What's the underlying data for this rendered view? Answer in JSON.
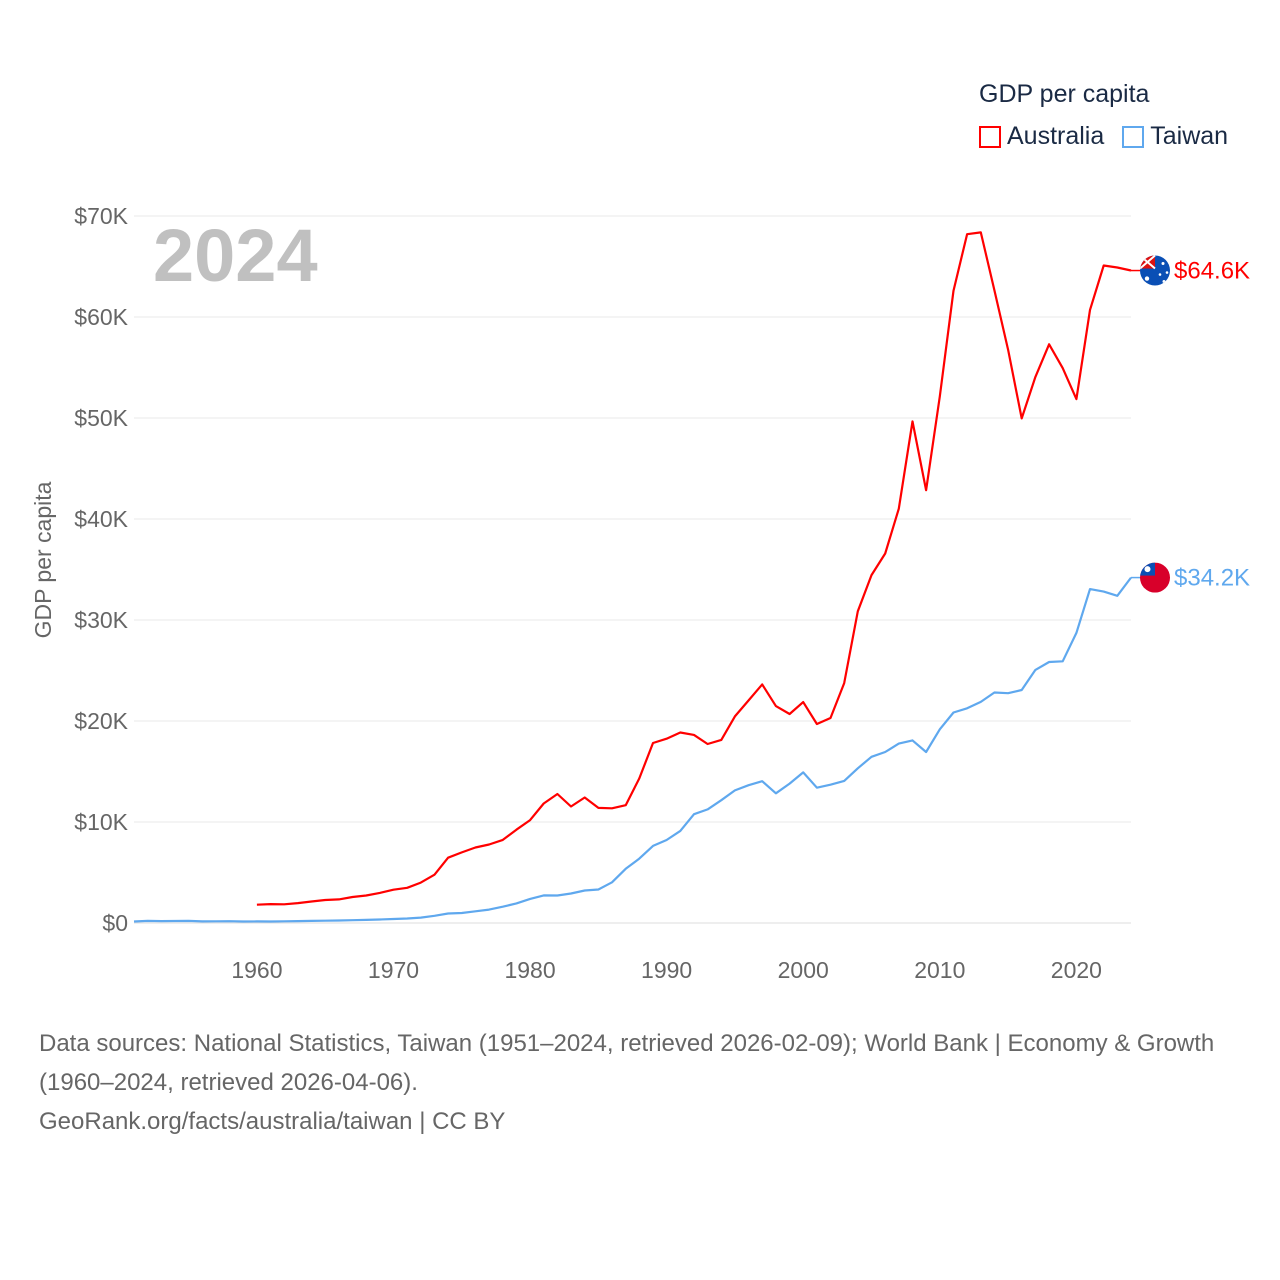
{
  "legend": {
    "title": "GDP per capita",
    "items": [
      {
        "label": "Australia",
        "color": "#ff0000"
      },
      {
        "label": "Taiwan",
        "color": "#5fa8ee"
      }
    ]
  },
  "year_label": "2024",
  "footer": {
    "sources": "Data sources: National Statistics, Taiwan (1951–2024, retrieved 2026-02-09); World Bank | Economy & Growth (1960–2024, retrieved 2026-04-06).",
    "credit": "GeoRank.org/facts/australia/taiwan | CC BY"
  },
  "chart_data": {
    "type": "line",
    "ylabel": "GDP per capita",
    "xlabel": "",
    "xlim": [
      1951,
      2024
    ],
    "ylim": [
      0,
      70000
    ],
    "grid": true,
    "x_ticks": [
      1960,
      1970,
      1980,
      1990,
      2000,
      2010,
      2020
    ],
    "y_ticks": [
      {
        "value": 0,
        "label": "$0"
      },
      {
        "value": 10000,
        "label": "$10K"
      },
      {
        "value": 20000,
        "label": "$20K"
      },
      {
        "value": 30000,
        "label": "$30K"
      },
      {
        "value": 40000,
        "label": "$40K"
      },
      {
        "value": 50000,
        "label": "$50K"
      },
      {
        "value": 60000,
        "label": "$60K"
      },
      {
        "value": 70000,
        "label": "$70K"
      }
    ],
    "series": [
      {
        "name": "Australia",
        "color": "#ff0000",
        "end_label": "$64.6K",
        "flag": "australia-flag-icon",
        "start_year": 1960,
        "values_k": [
          1.81,
          1.87,
          1.85,
          1.97,
          2.13,
          2.28,
          2.34,
          2.57,
          2.72,
          2.98,
          3.3,
          3.49,
          4.0,
          4.78,
          6.47,
          6.99,
          7.48,
          7.77,
          8.23,
          9.24,
          10.19,
          11.83,
          12.77,
          11.53,
          12.43,
          11.4,
          11.36,
          11.66,
          14.32,
          17.82,
          18.25,
          18.86,
          18.62,
          17.72,
          18.13,
          20.46,
          22.04,
          23.62,
          21.48,
          20.69,
          21.87,
          19.7,
          20.3,
          23.75,
          30.86,
          34.45,
          36.58,
          41.02,
          49.66,
          42.85,
          52.13,
          62.6,
          68.2,
          68.38,
          62.65,
          56.76,
          49.96,
          54.07,
          57.3,
          54.94,
          51.87,
          60.7,
          65.1,
          64.9,
          64.6
        ]
      },
      {
        "name": "Taiwan",
        "color": "#5fa8ee",
        "end_label": "$34.2K",
        "flag": "taiwan-flag-icon",
        "start_year": 1951,
        "values_k": [
          0.15,
          0.21,
          0.19,
          0.2,
          0.21,
          0.16,
          0.17,
          0.18,
          0.15,
          0.16,
          0.15,
          0.17,
          0.19,
          0.21,
          0.23,
          0.25,
          0.28,
          0.31,
          0.35,
          0.4,
          0.45,
          0.53,
          0.71,
          0.94,
          0.99,
          1.16,
          1.33,
          1.61,
          1.94,
          2.39,
          2.73,
          2.72,
          2.92,
          3.22,
          3.32,
          4.03,
          5.37,
          6.38,
          7.63,
          8.22,
          9.12,
          10.77,
          11.25,
          12.16,
          13.13,
          13.64,
          14.04,
          12.84,
          13.8,
          14.91,
          13.4,
          13.69,
          14.07,
          15.32,
          16.46,
          16.93,
          17.76,
          18.08,
          16.93,
          19.18,
          20.84,
          21.26,
          21.89,
          22.82,
          22.75,
          23.07,
          25.06,
          25.84,
          25.91,
          28.72,
          33.06,
          32.81,
          32.4,
          34.2
        ]
      }
    ]
  }
}
